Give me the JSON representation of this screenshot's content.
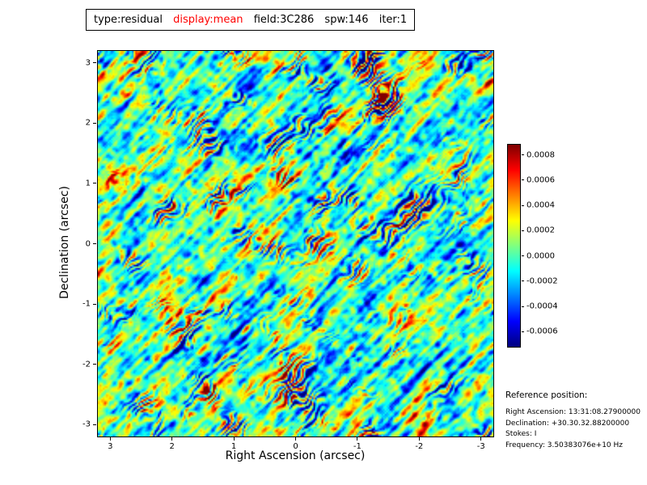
{
  "title": {
    "parts": [
      {
        "text": "type:residual",
        "color": "#000000"
      },
      {
        "text": "display:mean",
        "color": "#ff0000"
      },
      {
        "text": "field:3C286",
        "color": "#000000"
      },
      {
        "text": "spw:146",
        "color": "#000000"
      },
      {
        "text": "iter:1",
        "color": "#000000"
      }
    ]
  },
  "chart_data": {
    "type": "heatmap",
    "title": "type:residual display:mean field:3C286 spw:146 iter:1",
    "xlabel": "Right Ascension (arcsec)",
    "ylabel": "Declination (arcsec)",
    "xlim": [
      3.2,
      -3.2
    ],
    "ylim": [
      -3.2,
      3.2
    ],
    "x_ticks": [
      3,
      2,
      1,
      0,
      -1,
      -2,
      -3
    ],
    "x_tick_labels": [
      "3",
      "2",
      "1",
      "0",
      "-1",
      "-2",
      "-3"
    ],
    "y_ticks": [
      3,
      2,
      1,
      0,
      -1,
      -2,
      -3
    ],
    "y_tick_labels": [
      "3",
      "2",
      "1",
      "0",
      "-1",
      "-2",
      "-3"
    ],
    "colormap": "jet",
    "value_range": [
      -0.00072,
      0.00088
    ],
    "colorbar": {
      "tick_values": [
        0.0008,
        0.0006,
        0.0004,
        0.0002,
        0.0,
        -0.0002,
        -0.0004,
        -0.0006
      ],
      "tick_labels": [
        "0.0008",
        "0.0006",
        "0.0004",
        "0.0002",
        "0.0000",
        "-0.0002",
        "-0.0004",
        "-0.0006"
      ]
    },
    "grid": false,
    "legend": false,
    "content": "Interferometric residual noise image of field 3C286: mostly near-zero (green/cyan) background with diagonal stripe artifacts running lower-left to upper-right, scattered positive (yellow/orange/red) and negative (blue/dark-blue) speckles, values roughly -0.0007 to 0.0009"
  },
  "reference": {
    "heading": "Reference position:",
    "lines": [
      "Right Ascension: 13:31:08.27900000",
      "Declination: +30.30.32.88200000",
      "Stokes: I",
      "Frequency: 3.50383076e+10 Hz"
    ]
  }
}
